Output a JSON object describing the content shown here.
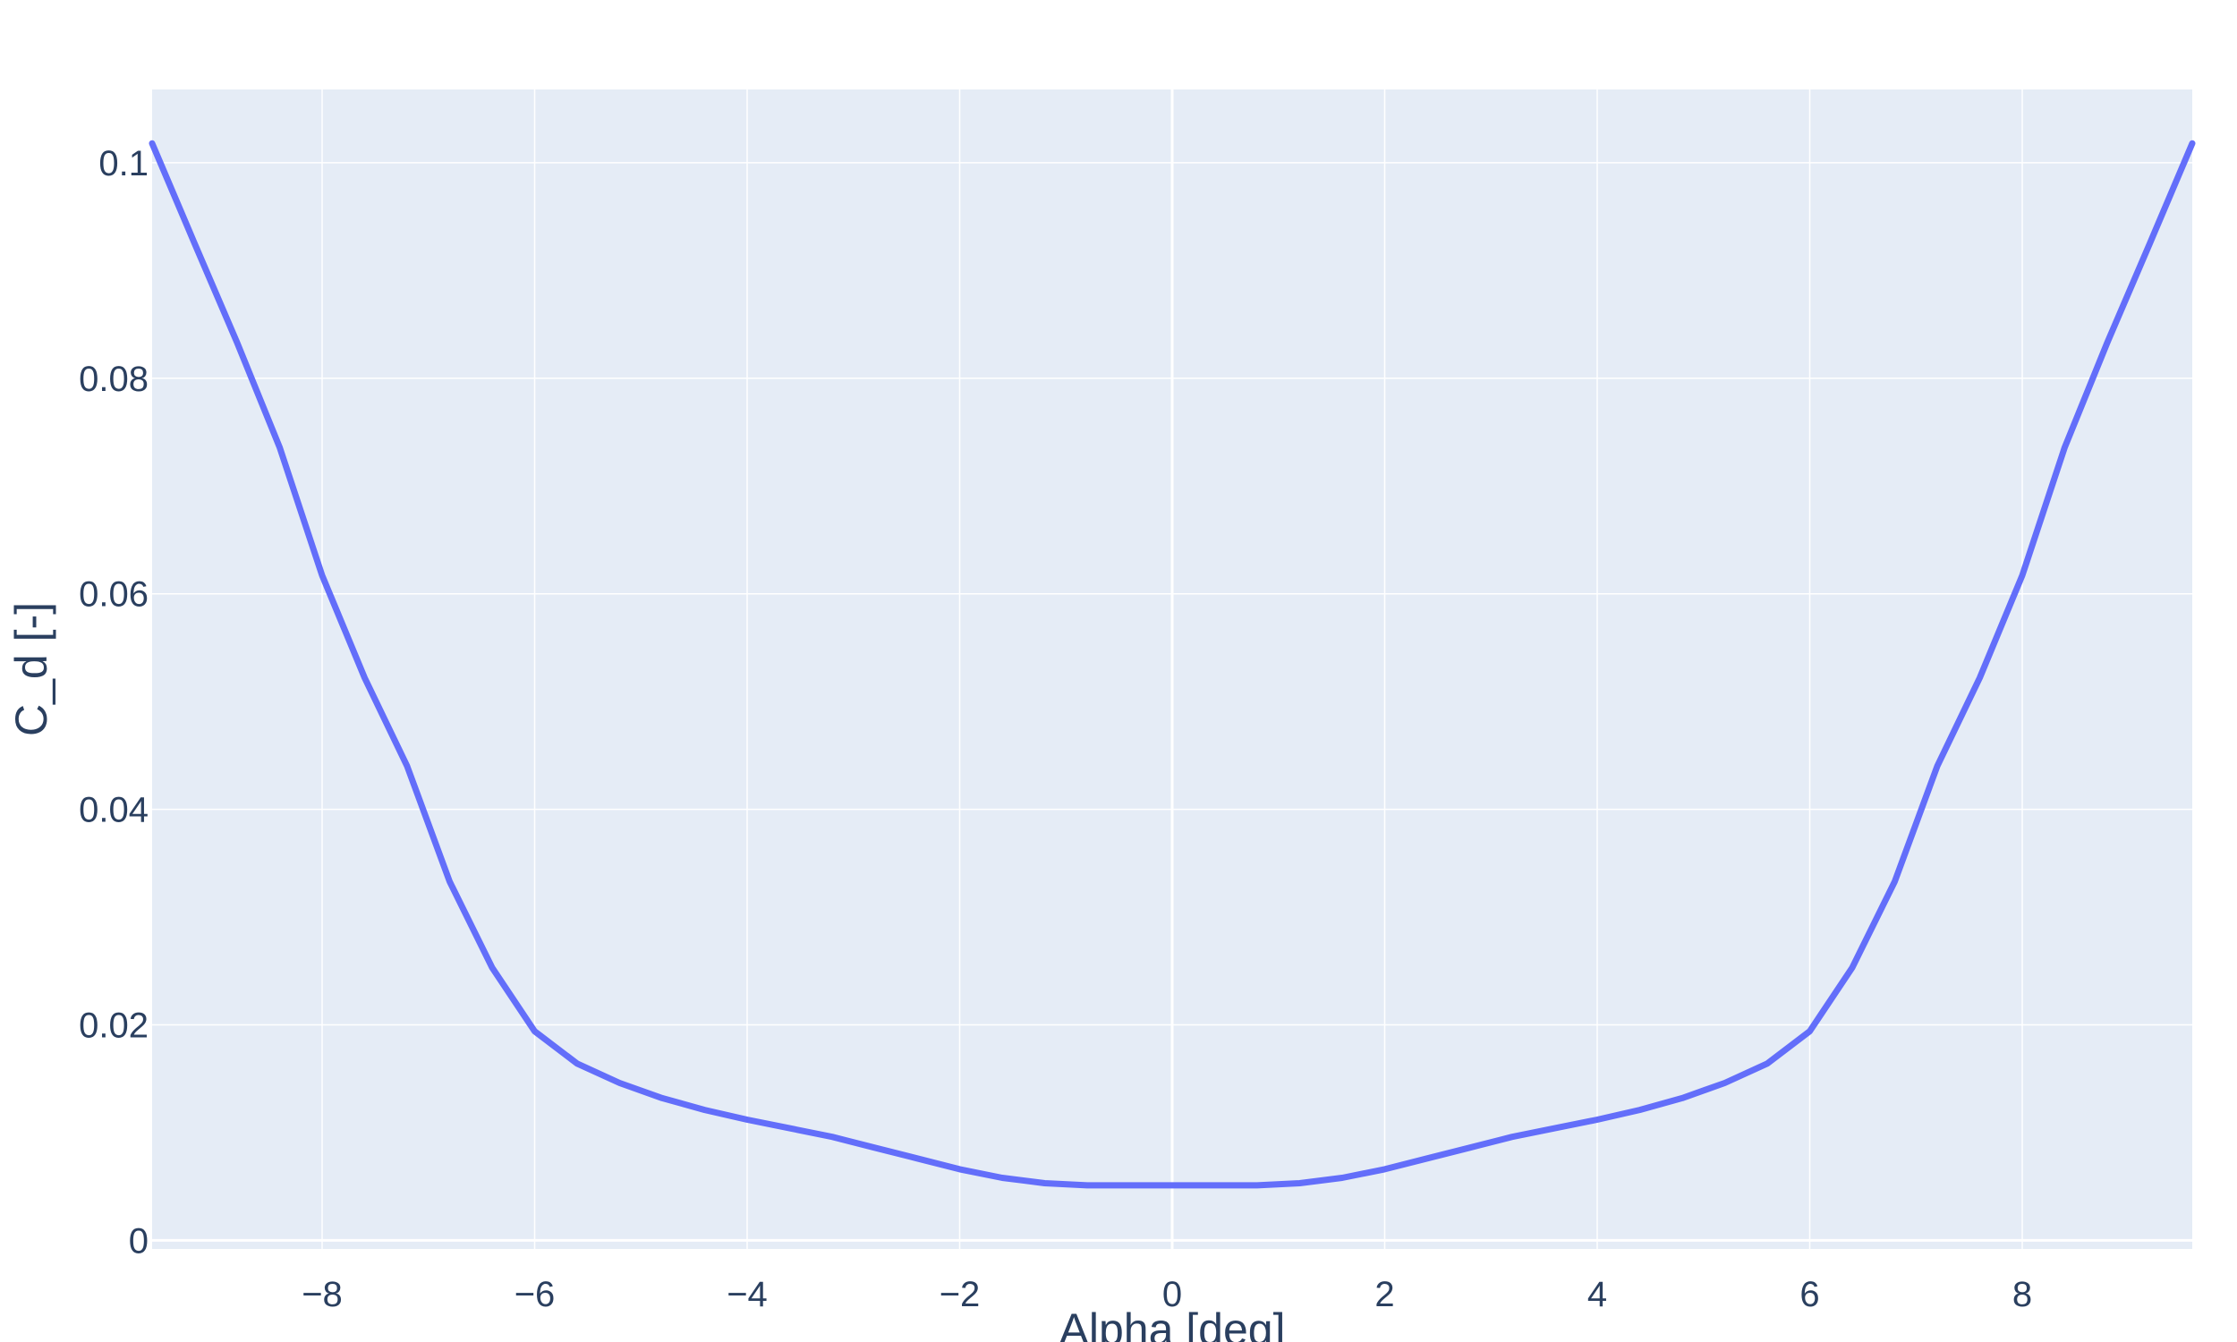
{
  "chart_data": {
    "type": "line",
    "title": "",
    "xlabel": "Alpha [deg]",
    "ylabel": "C_d [-]",
    "xlim": [
      -9.6,
      9.6
    ],
    "ylim": [
      -0.0008,
      0.1068
    ],
    "xticks": [
      -8,
      -6,
      -4,
      -2,
      0,
      2,
      4,
      6,
      8
    ],
    "xtick_labels": [
      "−8",
      "−6",
      "−4",
      "−2",
      "0",
      "2",
      "4",
      "6",
      "8"
    ],
    "yticks": [
      0,
      0.02,
      0.04,
      0.06,
      0.08,
      0.1
    ],
    "ytick_labels": [
      "0",
      "0.02",
      "0.04",
      "0.06",
      "0.08",
      "0.1"
    ],
    "grid": true,
    "colors": {
      "line": "#636efa",
      "plot_bg": "#e5ecf6",
      "grid": "#ffffff",
      "text": "#2a3f5f"
    },
    "series": [
      {
        "x": [
          -9.6,
          -9.2,
          -8.8,
          -8.4,
          -8.0,
          -7.6,
          -7.2,
          -6.8,
          -6.4,
          -6.0,
          -5.6,
          -5.2,
          -4.8,
          -4.4,
          -4.0,
          -3.6,
          -3.2,
          -2.8,
          -2.4,
          -2.0,
          -1.6,
          -1.2,
          -0.8,
          -0.4,
          0.0,
          0.4,
          0.8,
          1.2,
          1.6,
          2.0,
          2.4,
          2.8,
          3.2,
          3.6,
          4.0,
          4.4,
          4.8,
          5.2,
          5.6,
          6.0,
          6.4,
          6.8,
          7.2,
          7.6,
          8.0,
          8.4,
          8.8,
          9.2,
          9.6
        ],
        "y": [
          0.1018,
          0.0925,
          0.0833,
          0.0736,
          0.0617,
          0.0522,
          0.044,
          0.0333,
          0.0253,
          0.0194,
          0.0164,
          0.0146,
          0.0132,
          0.0121,
          0.0112,
          0.0104,
          0.0096,
          0.0086,
          0.0076,
          0.0066,
          0.0058,
          0.0053,
          0.0051,
          0.0051,
          0.0051,
          0.0051,
          0.0051,
          0.0053,
          0.0058,
          0.0066,
          0.0076,
          0.0086,
          0.0096,
          0.0104,
          0.0112,
          0.0121,
          0.0132,
          0.0146,
          0.0164,
          0.0194,
          0.0253,
          0.0333,
          0.044,
          0.0522,
          0.0617,
          0.0736,
          0.0833,
          0.0925,
          0.1018
        ]
      }
    ]
  }
}
